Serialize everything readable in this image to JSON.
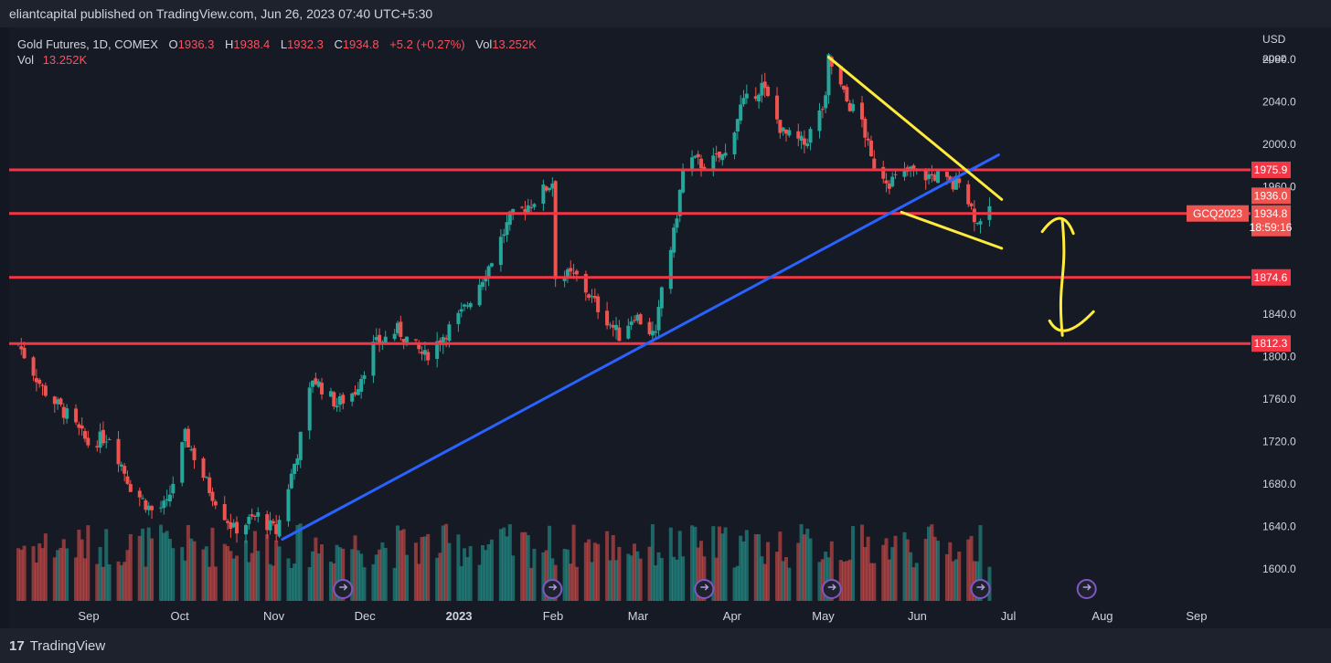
{
  "header": {
    "publisher_line": "eliantcapital published on TradingView.com, Jun 26, 2023 07:40 UTC+5:30"
  },
  "legend": {
    "symbol": "Gold Futures, 1D, COMEX",
    "o_label": "O",
    "o_value": "1936.3",
    "h_label": "H",
    "h_value": "1938.4",
    "l_label": "L",
    "l_value": "1932.3",
    "c_label": "C",
    "c_value": "1934.8",
    "change": "+5.2 (+0.27%)",
    "vol_label": "Vol",
    "vol_value": "13.252K",
    "row2_label": "Vol",
    "row2_value": "13.252K"
  },
  "price_axis": {
    "currency": "USD",
    "sub": "apoz"
  },
  "footer": {
    "brand": "TradingView",
    "brand_mark": "17"
  },
  "colors": {
    "up": "#26a69a",
    "down": "#ef5350",
    "level_line": "#f23645",
    "trendline": "#2962ff",
    "pattern": "#ffeb3b",
    "background": "#161a25"
  },
  "chart_data": {
    "type": "candlestick",
    "ylim": [
      1570,
      2110
    ],
    "y_ticks": [
      1600,
      1640,
      1680,
      1720,
      1760,
      1800,
      1840,
      1880,
      1920,
      1960,
      2000,
      2040,
      2080
    ],
    "y_tick_labels": [
      "1600.0",
      "1640.0",
      "1680.0",
      "1720.0",
      "1760.0",
      "1800.0",
      "1840.0",
      "",
      "",
      "1960.0",
      "2000.0",
      "2040.0",
      "2080.0"
    ],
    "x_tick_labels": [
      "Sep",
      "Oct",
      "Nov",
      "Dec",
      "2023",
      "Feb",
      "Mar",
      "Apr",
      "May",
      "Jun",
      "Jul",
      "Aug",
      "Sep"
    ],
    "horizontal_levels": [
      {
        "value": 1975.9,
        "label": "1975.9"
      },
      {
        "value": 1934.8,
        "label": "1934.8"
      },
      {
        "value": 1874.6,
        "label": "1874.6"
      },
      {
        "value": 1812.3,
        "label": "1812.3"
      }
    ],
    "price_tags": [
      {
        "value": 1936.0,
        "label": "1936.0"
      },
      {
        "value": 1934.8,
        "label": "1934.8",
        "countdown": "18:59:16",
        "symbol": "GCQ2023"
      }
    ],
    "close_anchors": [
      [
        "2022-08-10",
        1812
      ],
      [
        "2022-08-18",
        1770
      ],
      [
        "2022-08-26",
        1745
      ],
      [
        "2022-09-02",
        1718
      ],
      [
        "2022-09-09",
        1726
      ],
      [
        "2022-09-16",
        1678
      ],
      [
        "2022-09-23",
        1655
      ],
      [
        "2022-09-28",
        1660
      ],
      [
        "2022-10-04",
        1725
      ],
      [
        "2022-10-12",
        1675
      ],
      [
        "2022-10-20",
        1637
      ],
      [
        "2022-10-28",
        1650
      ],
      [
        "2022-11-03",
        1635
      ],
      [
        "2022-11-10",
        1710
      ],
      [
        "2022-11-15",
        1780
      ],
      [
        "2022-11-23",
        1755
      ],
      [
        "2022-11-29",
        1768
      ],
      [
        "2022-12-05",
        1810
      ],
      [
        "2022-12-13",
        1825
      ],
      [
        "2022-12-22",
        1800
      ],
      [
        "2023-01-03",
        1840
      ],
      [
        "2023-01-12",
        1885
      ],
      [
        "2023-01-19",
        1930
      ],
      [
        "2023-01-26",
        1945
      ],
      [
        "2023-02-02",
        1965
      ],
      [
        "2023-02-03",
        1878
      ],
      [
        "2023-02-10",
        1875
      ],
      [
        "2023-02-16",
        1850
      ],
      [
        "2023-02-24",
        1820
      ],
      [
        "2023-03-01",
        1840
      ],
      [
        "2023-03-08",
        1818
      ],
      [
        "2023-03-10",
        1865
      ],
      [
        "2023-03-14",
        1915
      ],
      [
        "2023-03-17",
        1975
      ],
      [
        "2023-03-20",
        1985
      ],
      [
        "2023-03-24",
        1980
      ],
      [
        "2023-03-31",
        1990
      ],
      [
        "2023-04-05",
        2035
      ],
      [
        "2023-04-12",
        2055
      ],
      [
        "2023-04-19",
        2010
      ],
      [
        "2023-04-26",
        2000
      ],
      [
        "2023-05-03",
        2040
      ],
      [
        "2023-05-04",
        2080
      ],
      [
        "2023-05-10",
        2040
      ],
      [
        "2023-05-15",
        2022
      ],
      [
        "2023-05-18",
        1985
      ],
      [
        "2023-05-24",
        1965
      ],
      [
        "2023-05-31",
        1975
      ],
      [
        "2023-06-05",
        1970
      ],
      [
        "2023-06-09",
        1970
      ],
      [
        "2023-06-14",
        1960
      ],
      [
        "2023-06-16",
        1970
      ],
      [
        "2023-06-20",
        1940
      ],
      [
        "2023-06-22",
        1925
      ],
      [
        "2023-06-23",
        1932
      ],
      [
        "2023-06-26",
        1934.8
      ]
    ],
    "annotations": {
      "trendline_blue": [
        [
          "2022-11-05",
          1628
        ],
        [
          "2023-06-29",
          1990
        ]
      ],
      "wedge_upper": [
        [
          "2023-05-04",
          2082
        ],
        [
          "2023-06-30",
          1948
        ]
      ],
      "wedge_lower": [
        [
          "2023-05-28",
          1936
        ],
        [
          "2023-06-30",
          1902
        ]
      ],
      "double_arrow_x": "2023-07-20",
      "double_arrow_y": [
        1928,
        1820
      ]
    }
  }
}
